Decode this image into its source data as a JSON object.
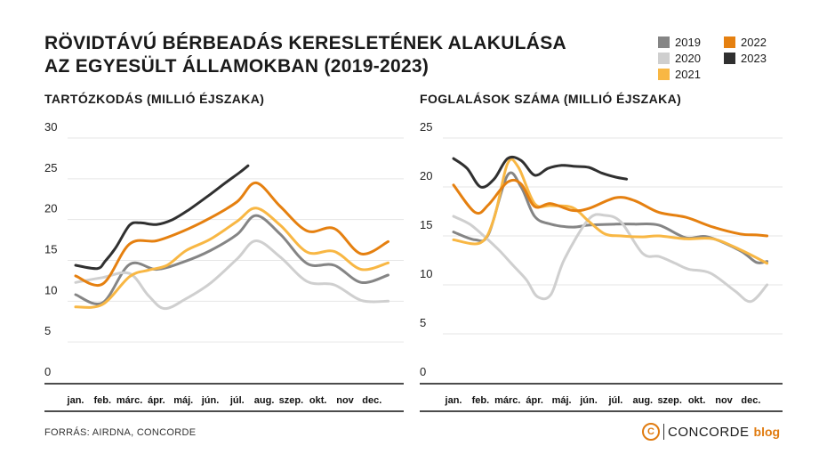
{
  "title_line1": "Rövidtávú bérbeadás keresletének alakulása",
  "title_line2": "az Egyesült Államokban (2019-2023)",
  "source": "FORRÁS: AIRDNA, CONCORDE",
  "brand": {
    "logo_letter": "C",
    "name": "CONCORDE",
    "suffix": "blog"
  },
  "colors": {
    "2019": "#858585",
    "2020": "#cfcfcf",
    "2021": "#f8b744",
    "2022": "#e58010",
    "2023": "#303030"
  },
  "legend": [
    "2019",
    "2020",
    "2021",
    "2022",
    "2023"
  ],
  "chart_data": [
    {
      "type": "line",
      "title": "Tartózkodás (millió éjszaka)",
      "categories": [
        "jan.",
        "feb.",
        "márc.",
        "ápr.",
        "máj.",
        "jún.",
        "júl.",
        "aug.",
        "szep.",
        "okt.",
        "nov",
        "dec."
      ],
      "ylim": [
        0,
        30
      ],
      "yticks": [
        "0",
        "5",
        "10",
        "15",
        "20",
        "25",
        "30"
      ],
      "grid": true,
      "series": [
        {
          "name": "2019",
          "x": [
            0,
            1,
            2,
            3,
            4,
            5,
            6,
            6.7,
            7.6,
            8.6,
            9.6,
            10.6,
            11.6
          ],
          "values": [
            10.8,
            9.8,
            14.5,
            13.9,
            14.8,
            16.2,
            18.2,
            20.5,
            18.2,
            14.6,
            14.4,
            12.3,
            13.2
          ]
        },
        {
          "name": "2020",
          "x": [
            0,
            1,
            2,
            2.7,
            3.3,
            4.1,
            5,
            6,
            6.7,
            7.6,
            8.6,
            9.6,
            10.6,
            11.6
          ],
          "values": [
            12.3,
            12.9,
            13.4,
            10.7,
            9.1,
            10.3,
            12.2,
            15.2,
            17.4,
            15.4,
            12.4,
            12.0,
            10.1,
            10.0
          ]
        },
        {
          "name": "2021",
          "x": [
            0,
            1,
            2,
            2.7,
            3.4,
            4.1,
            5,
            6,
            6.7,
            7.6,
            8.6,
            9.6,
            10.6,
            11.6
          ],
          "values": [
            9.3,
            9.6,
            13.0,
            13.8,
            14.4,
            16.2,
            17.6,
            19.8,
            21.4,
            19.3,
            16.0,
            16.1,
            13.9,
            14.7
          ]
        },
        {
          "name": "2022",
          "x": [
            0,
            1,
            2,
            3,
            4,
            5,
            6,
            6.7,
            7.6,
            8.6,
            9.6,
            10.6,
            11.6
          ],
          "values": [
            13.1,
            12.1,
            17.0,
            17.4,
            18.6,
            20.2,
            22.2,
            24.5,
            21.6,
            18.6,
            18.9,
            15.8,
            17.3
          ]
        },
        {
          "name": "2023",
          "x": [
            0,
            0.8,
            1.1,
            1.5,
            2,
            2.4,
            3,
            3.6,
            4.2,
            5,
            5.6,
            6.1,
            6.4
          ],
          "values": [
            14.4,
            14.0,
            14.9,
            16.6,
            19.3,
            19.6,
            19.4,
            20.0,
            21.2,
            23.1,
            24.6,
            25.8,
            26.6
          ]
        }
      ]
    },
    {
      "type": "line",
      "title": "Foglalások száma (millió éjszaka)",
      "categories": [
        "jan.",
        "feb.",
        "márc.",
        "ápr.",
        "máj.",
        "jún.",
        "júl.",
        "aug.",
        "szep.",
        "okt.",
        "nov",
        "dec."
      ],
      "ylim": [
        0,
        25
      ],
      "yticks": [
        "0",
        "5",
        "10",
        "15",
        "20",
        "25"
      ],
      "grid": true,
      "series": [
        {
          "name": "2019",
          "x": [
            0,
            0.8,
            1.3,
            2,
            2.5,
            3,
            3.6,
            4.4,
            5,
            6,
            6.7,
            7.6,
            8.6,
            9.4,
            10.6,
            11.2,
            11.6
          ],
          "values": [
            15.4,
            14.6,
            15.2,
            21.2,
            20.0,
            17.0,
            16.2,
            15.9,
            16.1,
            16.2,
            16.2,
            16.1,
            14.8,
            14.9,
            13.5,
            12.3,
            12.4
          ]
        },
        {
          "name": "2020",
          "x": [
            0,
            0.6,
            1.2,
            1.7,
            2.2,
            2.7,
            3.1,
            3.6,
            4.1,
            5,
            5.6,
            6.2,
            7,
            7.6,
            8.2,
            8.7,
            9.5,
            10.4,
            11,
            11.6
          ],
          "values": [
            17.0,
            16.2,
            14.8,
            13.5,
            12.0,
            10.5,
            8.8,
            9.0,
            12.6,
            16.7,
            17.1,
            16.4,
            13.2,
            12.9,
            12.2,
            11.6,
            11.2,
            9.4,
            8.3,
            10.0
          ]
        },
        {
          "name": "2021",
          "x": [
            0,
            1,
            1.5,
            2,
            2.4,
            3,
            3.6,
            4.4,
            5,
            5.6,
            6.2,
            7,
            7.6,
            8.6,
            9.6,
            10.6,
            11.6
          ],
          "values": [
            14.6,
            14.3,
            16.8,
            22.4,
            22.0,
            18.3,
            18.1,
            17.9,
            16.5,
            15.2,
            15.0,
            14.9,
            15.0,
            14.7,
            14.7,
            13.6,
            12.2
          ]
        },
        {
          "name": "2022",
          "x": [
            0,
            0.8,
            1.3,
            2,
            2.5,
            3,
            3.6,
            4.4,
            5,
            6,
            6.7,
            7.6,
            8.6,
            9.6,
            10.6,
            11.2,
            11.6
          ],
          "values": [
            20.2,
            17.4,
            18.2,
            20.5,
            20.3,
            18.0,
            18.3,
            17.6,
            17.8,
            18.9,
            18.6,
            17.4,
            16.9,
            15.9,
            15.2,
            15.1,
            15.0
          ]
        },
        {
          "name": "2023",
          "x": [
            0,
            0.5,
            1,
            1.5,
            2,
            2.5,
            3,
            3.5,
            4,
            4.5,
            5,
            5.5,
            6,
            6.4
          ],
          "values": [
            22.9,
            21.9,
            20.0,
            20.8,
            22.9,
            22.7,
            21.2,
            21.9,
            22.2,
            22.1,
            22.0,
            21.4,
            21.0,
            20.8
          ]
        }
      ]
    }
  ]
}
